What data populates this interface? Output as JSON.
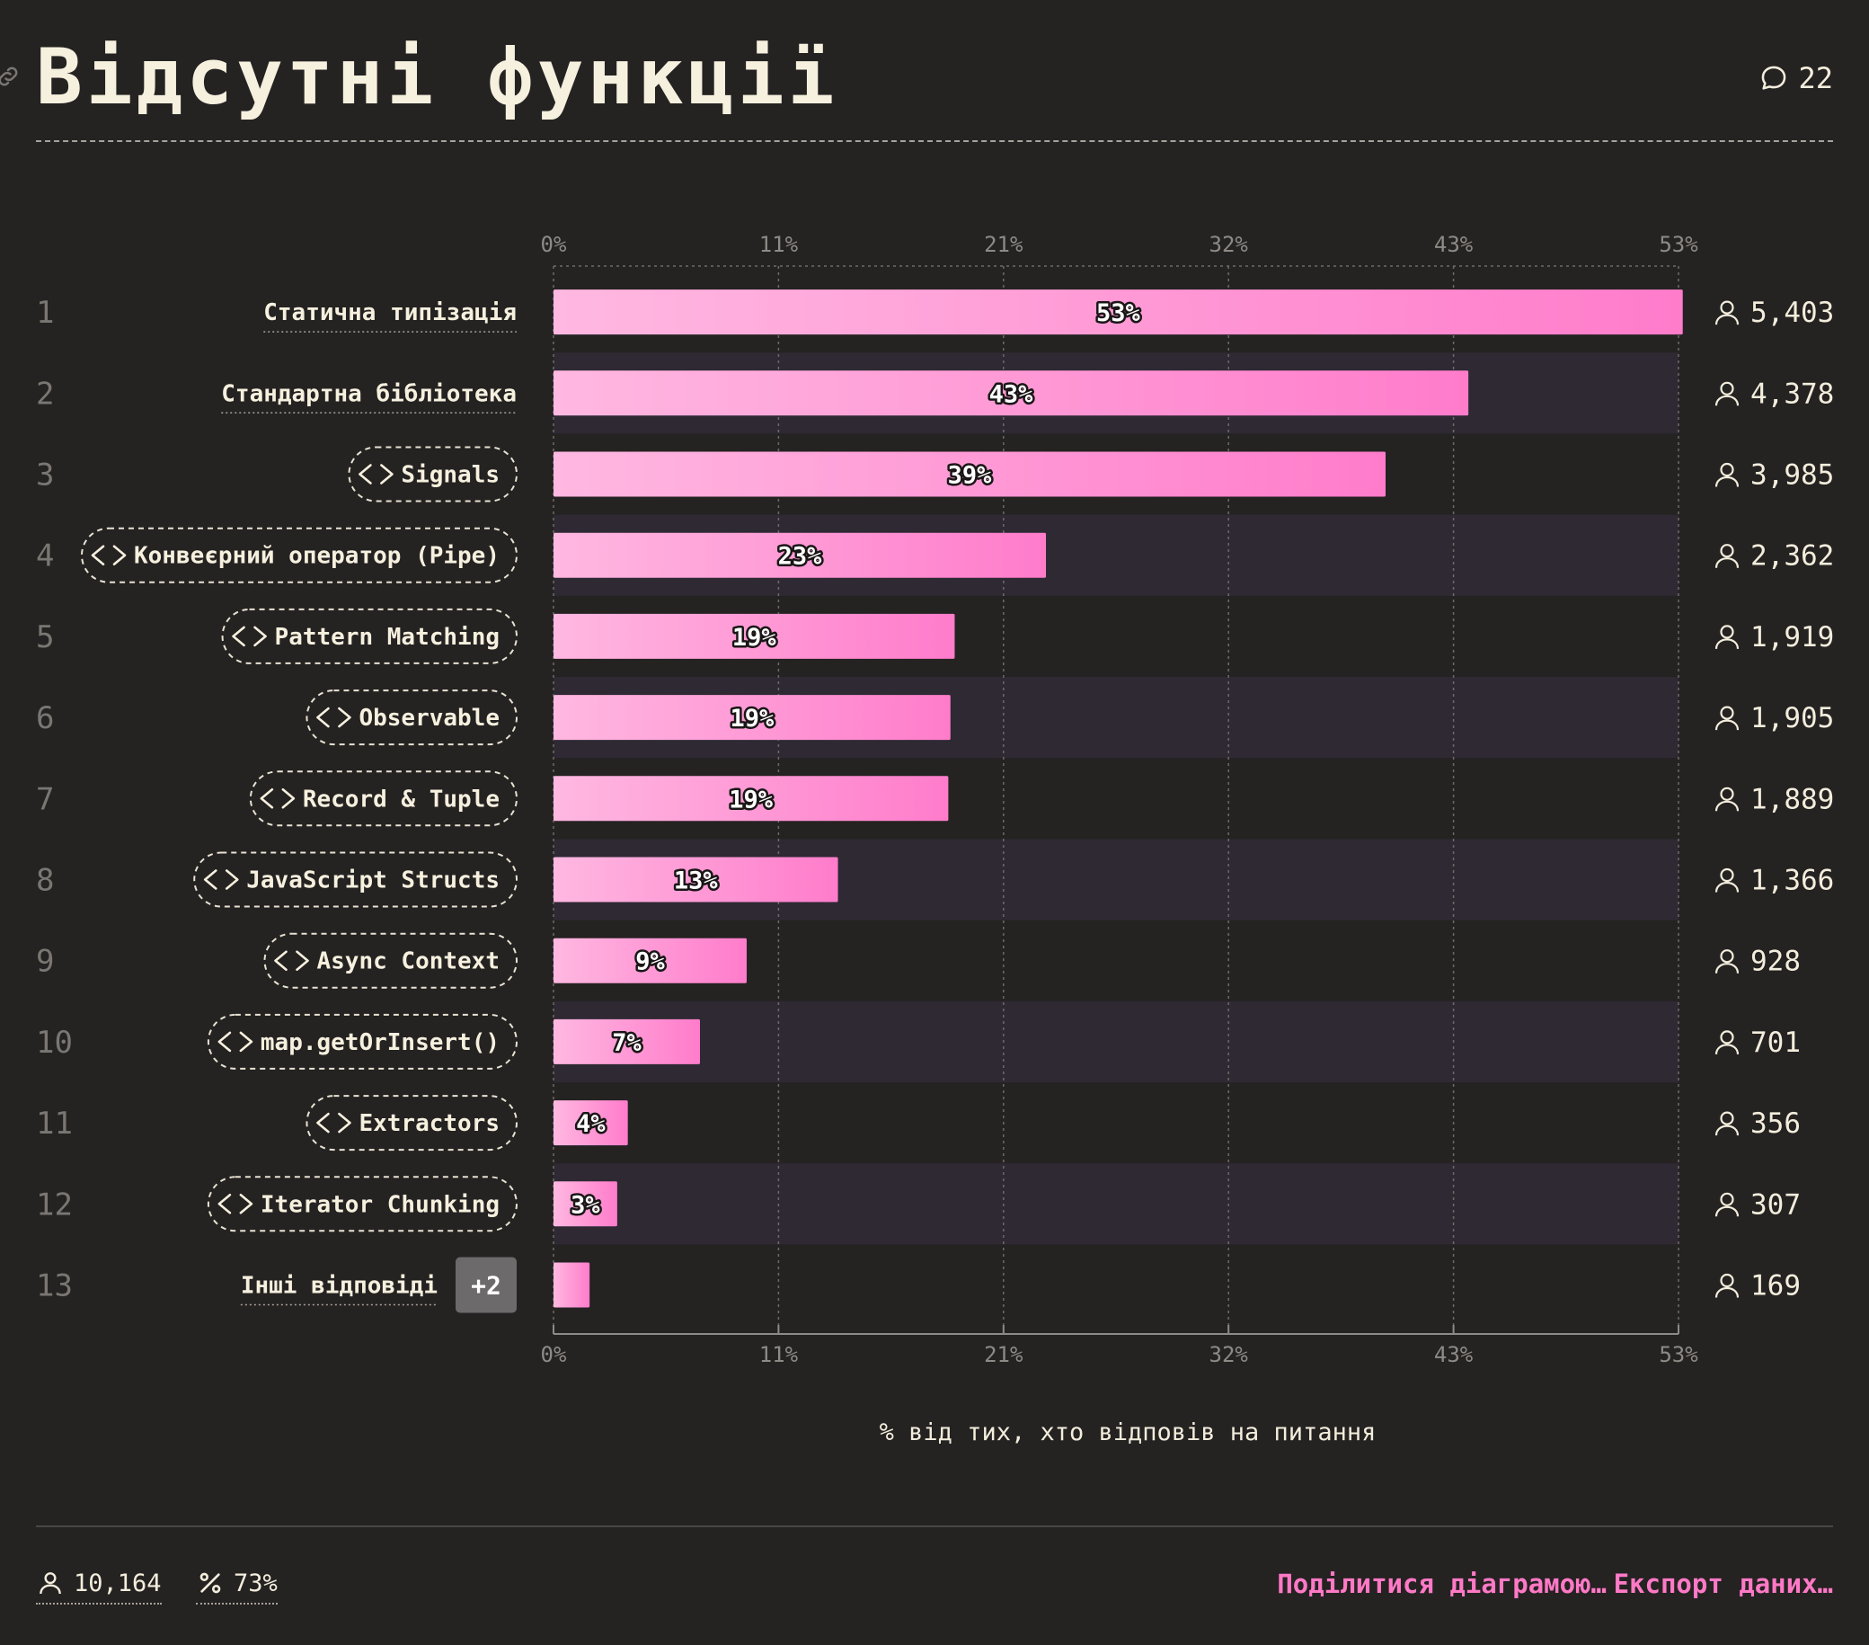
{
  "header": {
    "title": "Відсутні функції",
    "comment_count": "22"
  },
  "footer": {
    "respondents": "10,164",
    "percent_answered": "73%",
    "share_label": "Поділитися діаграмою…",
    "export_label": "Експорт даних…"
  },
  "colors": {
    "bar_start": "#ffb8e1",
    "bar_end": "#ff7ccb",
    "row_stripe": "#2e2933",
    "accent": "#ff79c6"
  },
  "chart_data": {
    "type": "bar",
    "orientation": "horizontal",
    "xlabel": "% від тих, хто відповів на питання",
    "xlim": [
      0,
      53
    ],
    "x_ticks": [
      "0%",
      "11%",
      "21%",
      "32%",
      "43%",
      "53%"
    ],
    "x_tick_values": [
      0,
      10.6,
      21.2,
      31.8,
      42.4,
      53
    ],
    "grid": true,
    "categories": [
      "Статична типізація",
      "Стандартна бібліотека",
      "Signals",
      "Конвеєрний оператор (Pipe)",
      "Pattern Matching",
      "Observable",
      "Record & Tuple",
      "JavaScript Structs",
      "Async Context",
      "map.getOrInsert()",
      "Extractors",
      "Iterator Chunking",
      "Інші відповіді"
    ],
    "ranks": [
      "1",
      "2",
      "3",
      "4",
      "5",
      "6",
      "7",
      "8",
      "9",
      "10",
      "11",
      "12",
      "13"
    ],
    "values": [
      53.2,
      43.1,
      39.2,
      23.2,
      18.9,
      18.7,
      18.6,
      13.4,
      9.1,
      6.9,
      3.5,
      3.0,
      1.7
    ],
    "value_labels": [
      "53%",
      "43%",
      "39%",
      "23%",
      "19%",
      "19%",
      "19%",
      "13%",
      "9%",
      "7%",
      "4%",
      "3%",
      ""
    ],
    "counts": [
      "5,403",
      "4,378",
      "3,985",
      "2,362",
      "1,919",
      "1,905",
      "1,889",
      "1,366",
      "928",
      "701",
      "356",
      "307",
      "169"
    ],
    "code_feature": [
      false,
      false,
      true,
      true,
      true,
      true,
      true,
      true,
      true,
      true,
      true,
      true,
      false
    ],
    "others_badge": "+2"
  }
}
